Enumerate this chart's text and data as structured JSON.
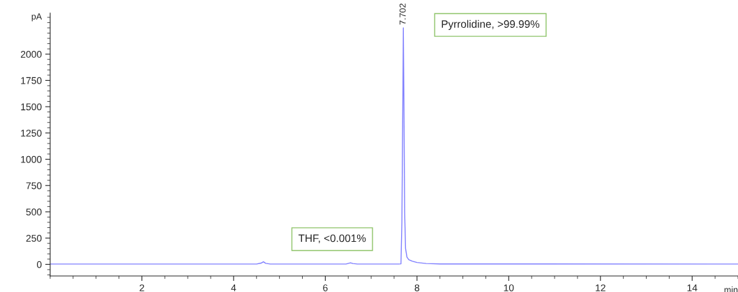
{
  "chart_data": {
    "type": "line",
    "xlabel": "min",
    "ylabel": "pA",
    "x": [
      0,
      4.5,
      4.6,
      4.65,
      4.7,
      4.8,
      6.45,
      6.55,
      6.6,
      6.7,
      7.6,
      7.65,
      7.67,
      7.69,
      7.702,
      7.715,
      7.73,
      7.75,
      7.78,
      7.82,
      7.9,
      8.0,
      8.2,
      8.5,
      15
    ],
    "series": [
      {
        "color": "#8080ff",
        "values": [
          3,
          3,
          12,
          25,
          10,
          3,
          3,
          15,
          8,
          3,
          3,
          5,
          400,
          1500,
          2250,
          1500,
          500,
          150,
          70,
          45,
          30,
          18,
          8,
          4,
          3
        ]
      }
    ],
    "xlim": [
      0,
      15
    ],
    "xticks": [
      2,
      4,
      6,
      8,
      10,
      12,
      14
    ],
    "ylim": [
      -110,
      2390
    ],
    "yticks": [
      0,
      250,
      500,
      750,
      1000,
      1250,
      1500,
      1750,
      2000
    ],
    "annotations": [
      {
        "text": "7.702",
        "x": 7.702,
        "y": 2250
      },
      "Pyrrolidine, >99.99%",
      "THF, <0.001%"
    ],
    "grid": false,
    "legend": false
  }
}
